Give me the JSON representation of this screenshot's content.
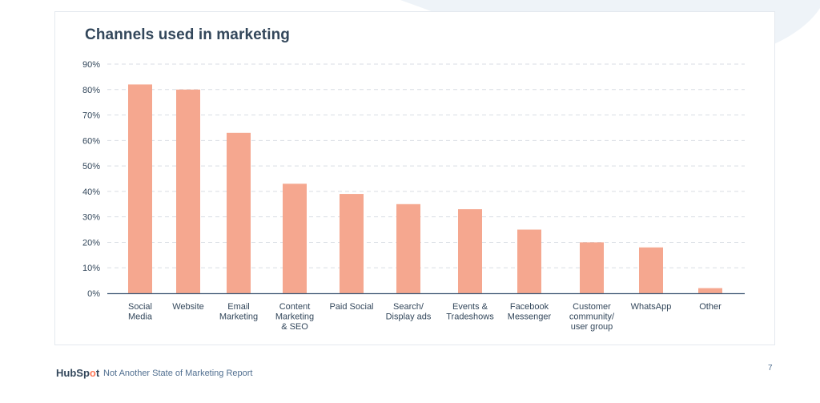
{
  "chart_data": {
    "type": "bar",
    "title": "Channels used in marketing",
    "categories": [
      [
        "Social",
        "Media"
      ],
      [
        "Website"
      ],
      [
        "Email",
        "Marketing"
      ],
      [
        "Content",
        "Marketing",
        "& SEO"
      ],
      [
        "Paid Social"
      ],
      [
        "Search/",
        "Display ads"
      ],
      [
        "Events &",
        "Tradeshows"
      ],
      [
        "Facebook",
        "Messenger"
      ],
      [
        "Customer",
        "community/",
        "user group"
      ],
      [
        "WhatsApp"
      ],
      [
        "Other"
      ]
    ],
    "values": [
      82,
      80,
      63,
      43,
      39,
      35,
      33,
      25,
      20,
      18,
      2
    ],
    "ylim": [
      0,
      90
    ],
    "yticks": [
      "0%",
      "10%",
      "20%",
      "30%",
      "40%",
      "50%",
      "60%",
      "70%",
      "80%",
      "90%"
    ],
    "grid": true,
    "bar_color": "#f5a78f"
  },
  "footer": {
    "logo": "HubSpot",
    "report": "Not Another State of Marketing Report",
    "page": "7"
  }
}
